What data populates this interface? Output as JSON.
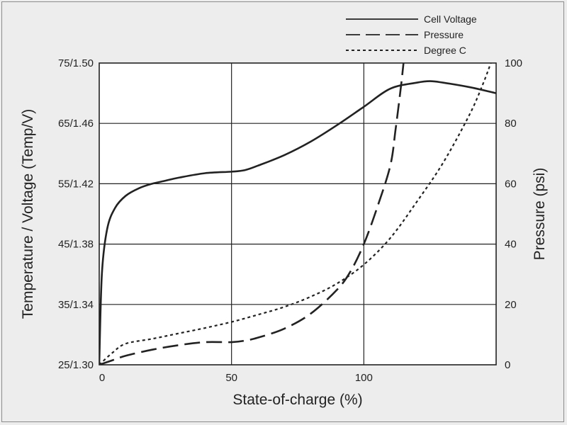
{
  "chart_data": {
    "type": "line",
    "xlabel": "State-of-charge (%)",
    "ylabel_left": "Temperature / Voltage (Temp/V)",
    "ylabel_right": "Pressure (psi)",
    "xlim": [
      0,
      150
    ],
    "x_ticks": [
      "0",
      "50",
      "100"
    ],
    "x_tick_values": [
      0,
      50,
      100
    ],
    "y_left_ticks": [
      "25/1.30",
      "35/1.34",
      "45/1.38",
      "55/1.42",
      "65/1.46",
      "75/1.50"
    ],
    "y_left_tick_values": [
      25,
      35,
      45,
      55,
      65,
      75
    ],
    "ylim_left": [
      25,
      75
    ],
    "y_right_ticks": [
      "0",
      "20",
      "40",
      "60",
      "80",
      "100"
    ],
    "y_right_tick_values": [
      0,
      20,
      40,
      60,
      80,
      100
    ],
    "ylim_right": [
      0,
      100
    ],
    "grid": true,
    "legend_position": "top-right, above plot",
    "series": [
      {
        "name": "Cell Voltage",
        "axis": "left",
        "style": "solid",
        "color": "#222222",
        "x": [
          0,
          1,
          3,
          6,
          10,
          15,
          20,
          25,
          30,
          40,
          50,
          55,
          60,
          70,
          80,
          90,
          100,
          110,
          120,
          125,
          130,
          140,
          150
        ],
        "y": [
          1.3,
          1.36,
          1.39,
          1.404,
          1.412,
          1.417,
          1.42,
          1.422,
          1.424,
          1.427,
          1.428,
          1.429,
          1.432,
          1.439,
          1.448,
          1.459,
          1.471,
          1.483,
          1.487,
          1.488,
          1.487,
          1.484,
          1.48
        ]
      },
      {
        "name": "Pressure",
        "axis": "right",
        "style": "dashed",
        "color": "#222222",
        "x": [
          0,
          5,
          10,
          20,
          30,
          40,
          50,
          55,
          60,
          70,
          80,
          90,
          95,
          100,
          105,
          110,
          112,
          114,
          115
        ],
        "y": [
          0,
          1.5,
          3,
          5,
          6.5,
          7.5,
          7.5,
          8,
          9,
          12,
          17,
          25,
          31,
          40,
          52,
          66,
          78,
          92,
          100
        ]
      },
      {
        "name": "Degree C",
        "axis": "left",
        "style": "dotted",
        "color": "#222222",
        "x": [
          0,
          5,
          10,
          20,
          30,
          40,
          50,
          60,
          70,
          80,
          90,
          100,
          110,
          120,
          130,
          140,
          145,
          148
        ],
        "y": [
          25,
          27,
          28.5,
          29.3,
          30.2,
          31.1,
          32.1,
          33.3,
          34.6,
          36.3,
          38.5,
          41.6,
          46,
          52,
          58.5,
          66.5,
          71.5,
          75
        ]
      }
    ]
  }
}
